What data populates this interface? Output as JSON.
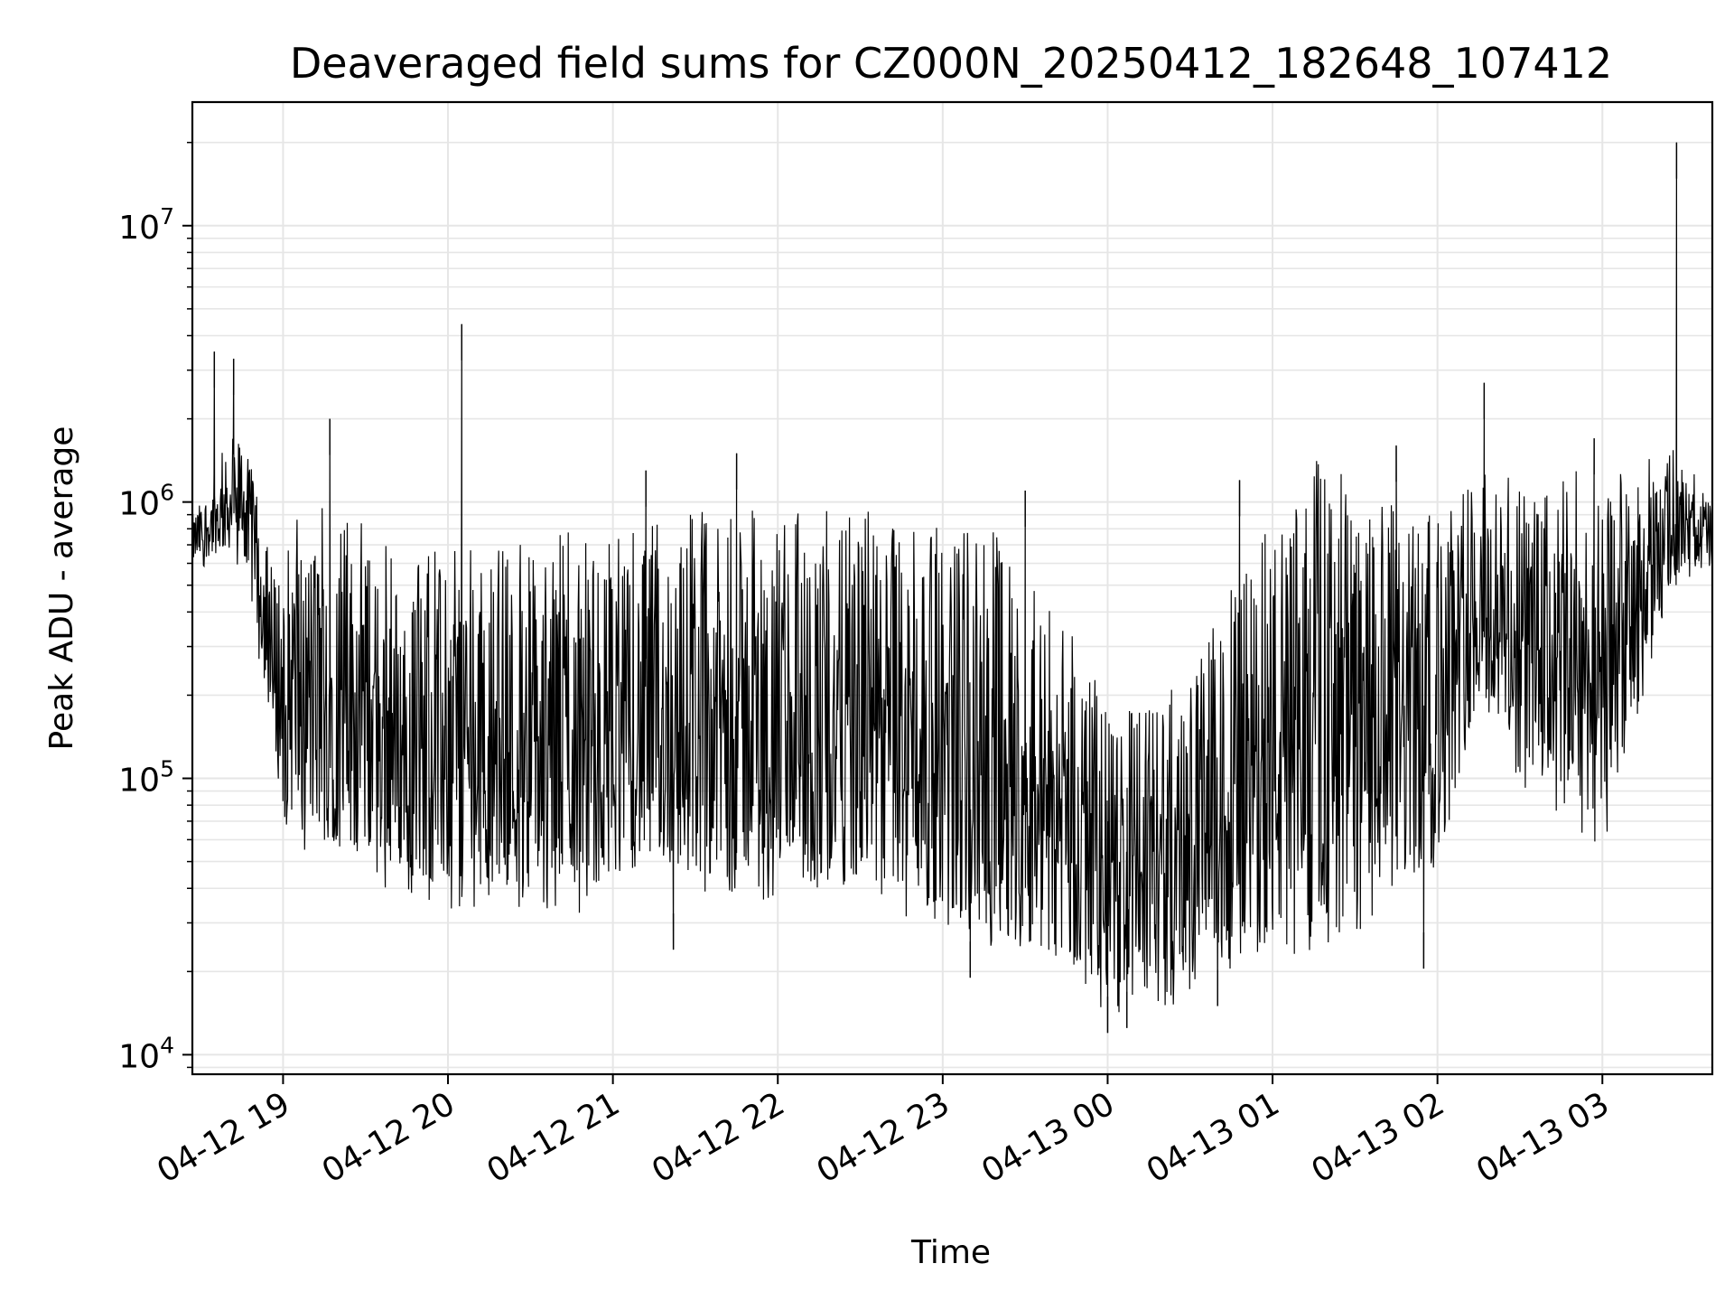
{
  "chart_data": {
    "type": "line",
    "title": "Deaveraged field sums for CZ000N_20250412_182648_107412",
    "xlabel": "Time",
    "ylabel": "Peak ADU - average",
    "yscale": "log",
    "ylim": [
      8500,
      28000000
    ],
    "xlim": [
      "2025-04-12 18:27",
      "2025-04-13 03:40"
    ],
    "grid": true,
    "x_ticks": [
      "04-12 19",
      "04-12 20",
      "04-12 21",
      "04-12 22",
      "04-12 23",
      "04-13 00",
      "04-13 01",
      "04-13 02",
      "04-13 03"
    ],
    "y_ticks": [
      {
        "base": "10",
        "exp": "4",
        "value": 10000
      },
      {
        "base": "10",
        "exp": "5",
        "value": 100000
      },
      {
        "base": "10",
        "exp": "6",
        "value": 1000000
      },
      {
        "base": "10",
        "exp": "7",
        "value": 10000000
      }
    ],
    "series": [
      {
        "line_color": "#000000",
        "x": [
          "2025-04-12 18:27",
          "2025-04-12 18:35",
          "2025-04-12 18:45",
          "2025-04-12 18:52",
          "2025-04-12 18:55",
          "2025-04-12 19:00",
          "2025-04-12 19:15",
          "2025-04-12 19:30",
          "2025-04-12 19:45",
          "2025-04-12 20:00",
          "2025-04-12 20:05",
          "2025-04-12 20:15",
          "2025-04-12 20:30",
          "2025-04-12 20:45",
          "2025-04-12 21:00",
          "2025-04-12 21:15",
          "2025-04-12 21:30",
          "2025-04-12 21:45",
          "2025-04-12 22:00",
          "2025-04-12 22:15",
          "2025-04-12 22:30",
          "2025-04-12 22:45",
          "2025-04-12 23:00",
          "2025-04-12 23:15",
          "2025-04-12 23:30",
          "2025-04-12 23:45",
          "2025-04-13 00:00",
          "2025-04-13 00:15",
          "2025-04-13 00:30",
          "2025-04-13 00:45",
          "2025-04-13 01:00",
          "2025-04-13 01:15",
          "2025-04-13 01:30",
          "2025-04-13 01:45",
          "2025-04-13 02:00",
          "2025-04-13 02:15",
          "2025-04-13 02:30",
          "2025-04-13 02:45",
          "2025-04-13 03:00",
          "2025-04-13 03:15",
          "2025-04-13 03:25",
          "2025-04-13 03:30",
          "2025-04-13 03:40"
        ],
        "y_low": [
          600000,
          650000,
          700000,
          300000,
          150000,
          80000,
          60000,
          55000,
          45000,
          40000,
          40000,
          42000,
          40000,
          40000,
          45000,
          50000,
          45000,
          45000,
          45000,
          40000,
          42000,
          40000,
          35000,
          30000,
          25000,
          22000,
          18000,
          17000,
          20000,
          25000,
          25000,
          30000,
          35000,
          40000,
          50000,
          200000,
          120000,
          90000,
          70000,
          200000,
          500000,
          600000,
          550000
        ],
        "y_high": [
          900000,
          1200000,
          1800000,
          900000,
          500000,
          700000,
          800000,
          700000,
          500000,
          600000,
          700000,
          550000,
          600000,
          700000,
          600000,
          700000,
          800000,
          800000,
          800000,
          800000,
          800000,
          700000,
          800000,
          700000,
          500000,
          300000,
          180000,
          150000,
          200000,
          400000,
          800000,
          1200000,
          1000000,
          800000,
          800000,
          1100000,
          1000000,
          1200000,
          1000000,
          1200000,
          1300000,
          1200000,
          1100000
        ],
        "spikes": [
          {
            "x": "2025-04-12 18:35",
            "y": 3500000
          },
          {
            "x": "2025-04-12 18:42",
            "y": 3300000
          },
          {
            "x": "2025-04-12 19:17",
            "y": 2000000
          },
          {
            "x": "2025-04-12 20:05",
            "y": 4400000
          },
          {
            "x": "2025-04-12 21:12",
            "y": 1300000
          },
          {
            "x": "2025-04-12 21:45",
            "y": 1500000
          },
          {
            "x": "2025-04-12 23:30",
            "y": 1100000
          },
          {
            "x": "2025-04-13 00:48",
            "y": 1200000
          },
          {
            "x": "2025-04-13 01:45",
            "y": 1600000
          },
          {
            "x": "2025-04-13 02:17",
            "y": 2700000
          },
          {
            "x": "2025-04-13 02:57",
            "y": 1700000
          },
          {
            "x": "2025-04-13 03:27",
            "y": 20000000
          }
        ],
        "dips": [
          {
            "x": "2025-04-12 21:22",
            "y": 24000
          },
          {
            "x": "2025-04-12 23:10",
            "y": 19000
          },
          {
            "x": "2025-04-13 00:00",
            "y": 12000
          },
          {
            "x": "2025-04-13 00:07",
            "y": 12500
          },
          {
            "x": "2025-04-13 00:40",
            "y": 15000
          },
          {
            "x": "2025-04-13 01:55",
            "y": 20500
          }
        ]
      }
    ]
  }
}
